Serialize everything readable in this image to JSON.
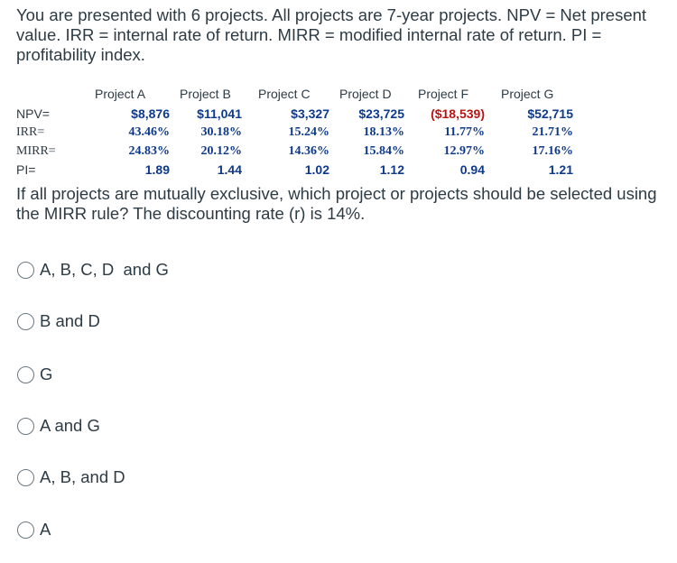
{
  "question": {
    "intro": "You are presented with 6 projects. All projects are 7-year projects. NPV = Net present value. IRR = internal rate of return. MIRR = modified internal rate of return. PI = profitability index.",
    "prompt": "If all projects are mutually exclusive, which project or projects should be selected using the MIRR rule? The discounting rate (r) is 14%."
  },
  "table": {
    "headers": [
      "Project A",
      "Project B",
      "Project C",
      "Project D",
      "Project F",
      "Project G"
    ],
    "row_labels": {
      "npv": "NPV=",
      "irr": "IRR=",
      "mirr": "MIRR=",
      "pi": "PI="
    },
    "npv": [
      "$8,876",
      "$11,041",
      "$3,327",
      "$23,725",
      "($18,539)",
      "$52,715"
    ],
    "irr": [
      "43.46%",
      "30.18%",
      "15.24%",
      "18.13%",
      "11.77%",
      "21.71%"
    ],
    "mirr": [
      "24.83%",
      "20.12%",
      "14.36%",
      "15.84%",
      "12.97%",
      "17.16%"
    ],
    "pi": [
      "1.89",
      "1.44",
      "1.02",
      "1.12",
      "0.94",
      "1.21"
    ],
    "colors": {
      "value_text": "#0e3a8c",
      "negative_text": "#b81414"
    }
  },
  "options": [
    {
      "label": "A, B, C, D  and G"
    },
    {
      "label": "B and D"
    },
    {
      "label": "G"
    },
    {
      "label": "A and G"
    },
    {
      "label": "A, B, and D"
    },
    {
      "label": "A"
    }
  ]
}
